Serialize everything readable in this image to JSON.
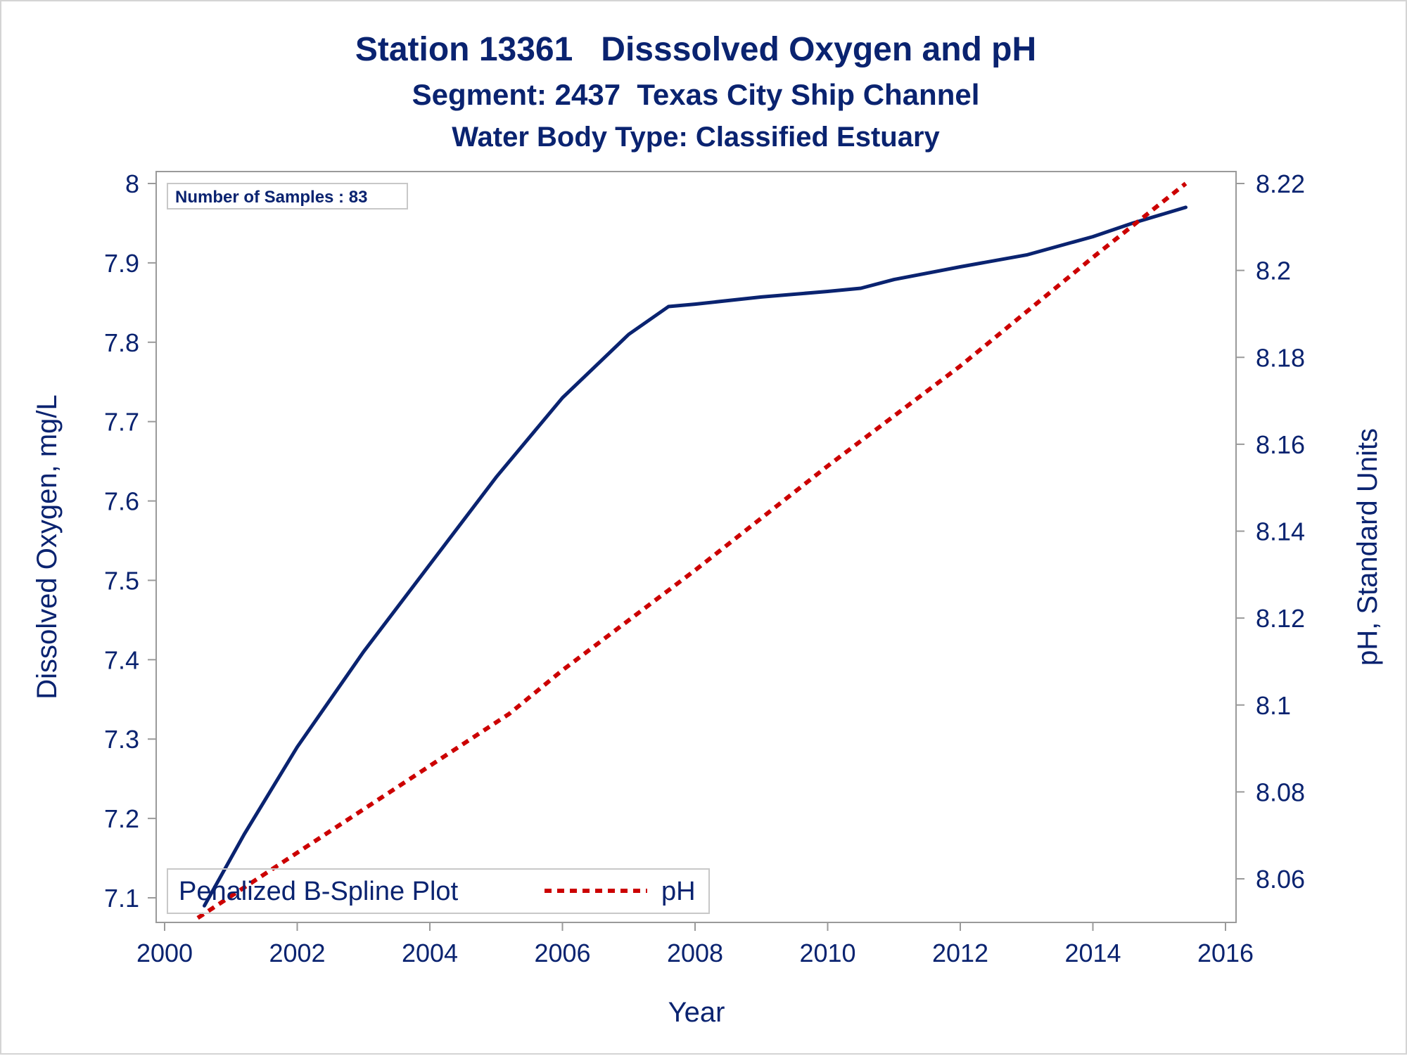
{
  "chart_data": {
    "type": "line",
    "title": "Station 13361   Disssolved Oxygen and pH",
    "subtitle": "Segment: 2437  Texas City Ship Channel",
    "subtitle2": "Water Body Type: Classified Estuary",
    "xlabel": "Year",
    "ylabel_left": "Dissolved Oxygen, mg/L",
    "ylabel_right": "pH, Standard Units",
    "xlim": [
      2000,
      2016
    ],
    "ylim_left": [
      7.08,
      8.01
    ],
    "ylim_right": [
      8.05,
      8.222
    ],
    "xticks": [
      2000,
      2002,
      2004,
      2006,
      2008,
      2010,
      2012,
      2014,
      2016
    ],
    "yticks_left": [
      7.1,
      7.2,
      7.3,
      7.4,
      7.5,
      7.6,
      7.7,
      7.8,
      7.9,
      8
    ],
    "yticks_right": [
      8.06,
      8.08,
      8.1,
      8.12,
      8.14,
      8.16,
      8.18,
      8.2,
      8.22
    ],
    "annotation": "Number of Samples : 83",
    "legend_title": "Penalized B-Spline Plot",
    "legend_position": "bottom-left",
    "grid": false,
    "series": [
      {
        "axis": "left",
        "style": "solid",
        "color": "#0a2370",
        "x": [
          2000.6,
          2001.2,
          2002.0,
          2003.0,
          2004.0,
          2005.0,
          2006.0,
          2007.0,
          2007.6,
          2008.0,
          2009.0,
          2010.0,
          2010.5,
          2011.0,
          2012.0,
          2013.0,
          2014.0,
          2014.6,
          2015.4
        ],
        "values": [
          7.09,
          7.18,
          7.29,
          7.41,
          7.52,
          7.63,
          7.73,
          7.81,
          7.845,
          7.848,
          7.857,
          7.864,
          7.868,
          7.879,
          7.895,
          7.91,
          7.933,
          7.95,
          7.97
        ]
      },
      {
        "name": "pH",
        "axis": "right",
        "style": "dashed",
        "color": "#cc0000",
        "x": [
          2000.5,
          2002.0,
          2004.0,
          2005.2,
          2006.0,
          2008.0,
          2010.0,
          2012.0,
          2014.0,
          2015.4
        ],
        "values": [
          8.051,
          8.066,
          8.086,
          8.098,
          8.108,
          8.131,
          8.155,
          8.178,
          8.203,
          8.22
        ]
      }
    ]
  }
}
